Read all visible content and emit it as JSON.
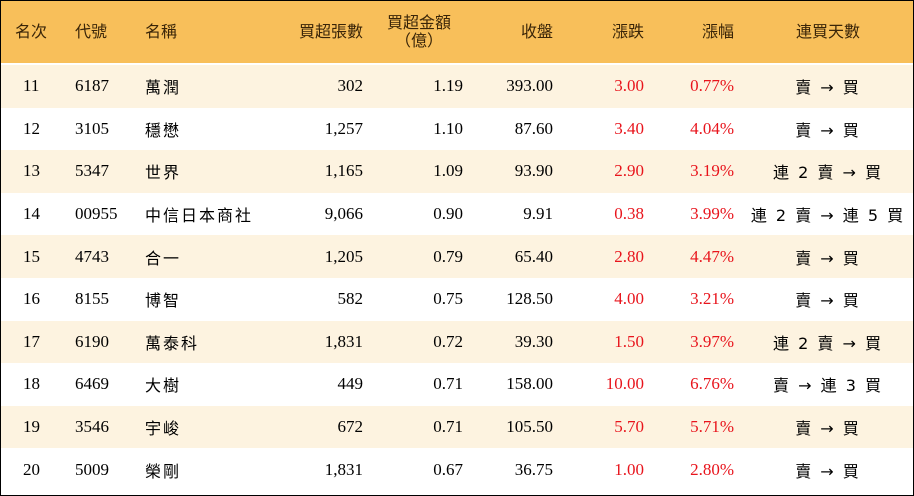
{
  "header": {
    "rank": "名次",
    "code": "代號",
    "name": "名稱",
    "net_buy_lots": "買超張數",
    "net_buy_amount_line1": "買超金額",
    "net_buy_amount_line2": "（億）",
    "close": "收盤",
    "change": "漲跌",
    "change_pct": "漲幅",
    "consecutive_days": "連買天數"
  },
  "rows": [
    {
      "rank": "11",
      "code": "6187",
      "name": "萬潤",
      "lots": "302",
      "amount": "1.19",
      "close": "393.00",
      "change": "3.00",
      "pct": "0.77%",
      "days": "賣 → 買"
    },
    {
      "rank": "12",
      "code": "3105",
      "name": "穩懋",
      "lots": "1,257",
      "amount": "1.10",
      "close": "87.60",
      "change": "3.40",
      "pct": "4.04%",
      "days": "賣 → 買"
    },
    {
      "rank": "13",
      "code": "5347",
      "name": "世界",
      "lots": "1,165",
      "amount": "1.09",
      "close": "93.90",
      "change": "2.90",
      "pct": "3.19%",
      "days": "連 2 賣 → 買"
    },
    {
      "rank": "14",
      "code": "00955",
      "name": "中信日本商社",
      "lots": "9,066",
      "amount": "0.90",
      "close": "9.91",
      "change": "0.38",
      "pct": "3.99%",
      "days": "連 2 賣 → 連 5 買"
    },
    {
      "rank": "15",
      "code": "4743",
      "name": "合一",
      "lots": "1,205",
      "amount": "0.79",
      "close": "65.40",
      "change": "2.80",
      "pct": "4.47%",
      "days": "賣 → 買"
    },
    {
      "rank": "16",
      "code": "8155",
      "name": "博智",
      "lots": "582",
      "amount": "0.75",
      "close": "128.50",
      "change": "4.00",
      "pct": "3.21%",
      "days": "賣 → 買"
    },
    {
      "rank": "17",
      "code": "6190",
      "name": "萬泰科",
      "lots": "1,831",
      "amount": "0.72",
      "close": "39.30",
      "change": "1.50",
      "pct": "3.97%",
      "days": "連 2 賣 → 買"
    },
    {
      "rank": "18",
      "code": "6469",
      "name": "大樹",
      "lots": "449",
      "amount": "0.71",
      "close": "158.00",
      "change": "10.00",
      "pct": "6.76%",
      "days": "賣 → 連 3 買"
    },
    {
      "rank": "19",
      "code": "3546",
      "name": "宇峻",
      "lots": "672",
      "amount": "0.71",
      "close": "105.50",
      "change": "5.70",
      "pct": "5.71%",
      "days": "賣 → 買"
    },
    {
      "rank": "20",
      "code": "5009",
      "name": "榮剛",
      "lots": "1,831",
      "amount": "0.67",
      "close": "36.75",
      "change": "1.00",
      "pct": "2.80%",
      "days": "賣 → 買"
    }
  ],
  "colors": {
    "header_bg": "#F8BF5A",
    "stripe_bg": "#FDF3E0",
    "rise": "#e8141c"
  }
}
